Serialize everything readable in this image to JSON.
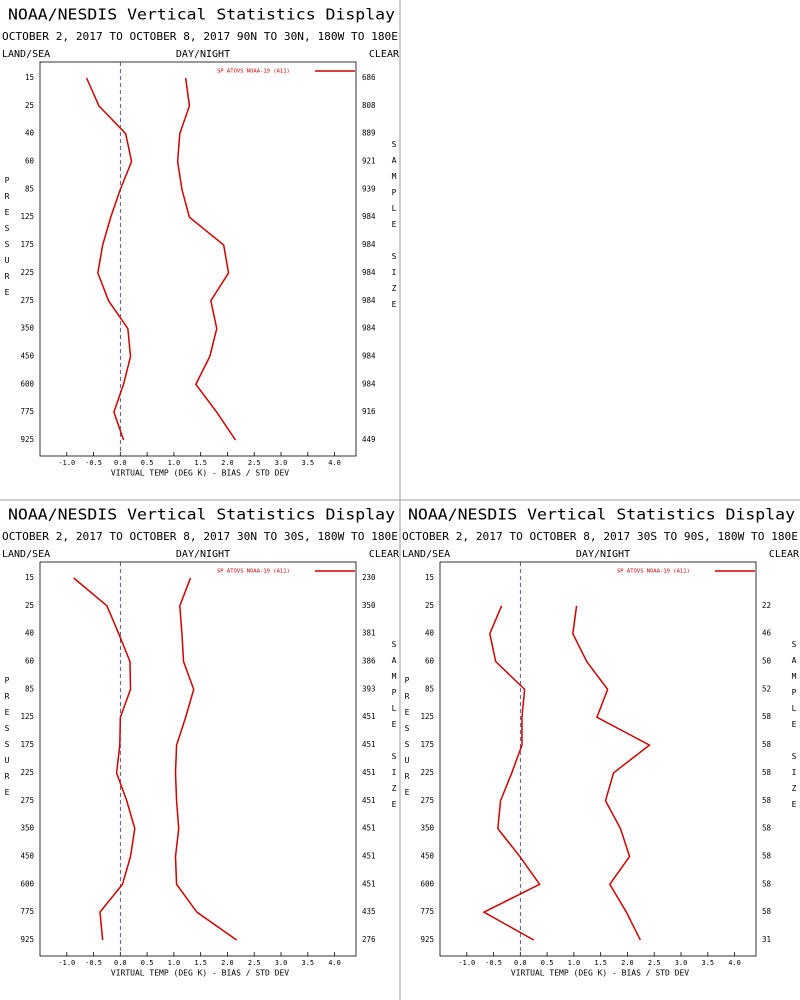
{
  "chart_data": [
    {
      "type": "profile",
      "title": "NOAA/NESDIS Vertical Statistics Display",
      "subtitle": "OCTOBER 2, 2017 TO OCTOBER 8, 2017 90N TO 30N, 180W TO 180E",
      "left_label": "LAND/SEA",
      "center_label": "DAY/NIGHT",
      "right_label": "CLEAR",
      "y_label": "PRESSURE",
      "y2_label": "SAMPLE SIZE",
      "x_label": "VIRTUAL TEMP (DEG K) - BIAS / STD DEV",
      "categories": [
        15,
        25,
        40,
        60,
        85,
        125,
        175,
        225,
        275,
        350,
        450,
        600,
        775,
        925
      ],
      "sample_size": [
        686,
        808,
        889,
        921,
        939,
        984,
        984,
        984,
        984,
        984,
        984,
        984,
        916,
        449
      ],
      "series": [
        {
          "name": "SP ATOVS NOAA-19 (A11)",
          "color": "#d00000",
          "values": [
            -0.63,
            -0.4,
            0.1,
            0.21,
            0.0,
            -0.18,
            -0.33,
            -0.42,
            -0.22,
            0.14,
            0.19,
            0.06,
            -0.12,
            0.06
          ],
          "std_dev": [
            1.22,
            1.29,
            1.11,
            1.07,
            1.15,
            1.29,
            1.93,
            2.02,
            1.69,
            1.8,
            1.67,
            1.41,
            1.8,
            2.15
          ]
        }
      ],
      "xlim": [
        -1.5,
        4.4
      ],
      "xticks": [
        {
          "value": -1,
          "label": "-1.0"
        },
        -0.5,
        {
          "value": 0,
          "label": "0.0"
        },
        0.5,
        {
          "value": 1,
          "label": "1.0"
        },
        1.5,
        {
          "value": 2,
          "label": "2.0"
        },
        2.5,
        {
          "value": 3,
          "label": "3.0"
        },
        3.5,
        {
          "value": 4,
          "label": "4.0"
        }
      ],
      "zero_line": true
    },
    {
      "type": "profile",
      "title": "NOAA/NESDIS Vertical Statistics Display",
      "subtitle": "OCTOBER 2, 2017 TO OCTOBER 8, 2017 30N TO 30S, 180W TO 180E",
      "left_label": "LAND/SEA",
      "center_label": "DAY/NIGHT",
      "right_label": "CLEAR",
      "y_label": "PRESSURE",
      "y2_label": "SAMPLE SIZE",
      "x_label": "VIRTUAL TEMP (DEG K) - BIAS / STD DEV",
      "categories": [
        15,
        25,
        40,
        60,
        85,
        125,
        175,
        225,
        275,
        350,
        450,
        600,
        775,
        925
      ],
      "sample_size": [
        230,
        350,
        381,
        386,
        393,
        451,
        451,
        451,
        451,
        451,
        451,
        451,
        435,
        276
      ],
      "series": [
        {
          "name": "SP ATOVS NOAA-19 (A11)",
          "color": "#d00000",
          "values": [
            -0.87,
            -0.25,
            -0.03,
            0.18,
            0.19,
            0.0,
            -0.01,
            -0.07,
            0.12,
            0.27,
            0.19,
            0.04,
            -0.38,
            -0.33
          ],
          "std_dev": [
            1.31,
            1.11,
            1.15,
            1.18,
            1.37,
            1.22,
            1.05,
            1.03,
            1.05,
            1.09,
            1.03,
            1.05,
            1.43,
            2.17
          ]
        }
      ],
      "xlim": [
        -1.5,
        4.4
      ],
      "xticks": [
        {
          "value": -1,
          "label": "-1.0"
        },
        -0.5,
        {
          "value": 0,
          "label": "0.0"
        },
        0.5,
        {
          "value": 1,
          "label": "1.0"
        },
        1.5,
        {
          "value": 2,
          "label": "2.0"
        },
        2.5,
        {
          "value": 3,
          "label": "3.0"
        },
        3.5,
        {
          "value": 4,
          "label": "4.0"
        }
      ],
      "zero_line": true
    },
    {
      "type": "profile",
      "title": "NOAA/NESDIS Vertical Statistics Display",
      "subtitle": "OCTOBER 2, 2017 TO OCTOBER 8, 2017 30S TO 90S, 180W TO 180E",
      "left_label": "LAND/SEA",
      "center_label": "DAY/NIGHT",
      "right_label": "CLEAR",
      "y_label": "PRESSURE",
      "y2_label": "SAMPLE SIZE",
      "x_label": "VIRTUAL TEMP (DEG K) - BIAS / STD DEV",
      "categories": [
        15,
        25,
        40,
        60,
        85,
        125,
        175,
        225,
        275,
        350,
        450,
        600,
        775,
        925
      ],
      "sample_size": [
        null,
        22,
        46,
        50,
        52,
        58,
        58,
        58,
        58,
        58,
        58,
        58,
        58,
        31
      ],
      "series": [
        {
          "name": "SP ATOVS NOAA-19 (A11)",
          "color": "#d00000",
          "values": [
            null,
            -0.35,
            -0.57,
            -0.46,
            0.08,
            0.03,
            0.03,
            -0.16,
            -0.37,
            -0.42,
            -0.01,
            0.36,
            -0.68,
            0.25
          ],
          "std_dev": [
            null,
            1.05,
            0.98,
            1.24,
            1.63,
            1.43,
            2.41,
            1.74,
            1.59,
            1.87,
            2.04,
            1.67,
            1.98,
            2.24
          ]
        }
      ],
      "xlim": [
        -1.5,
        4.4
      ],
      "xticks": [
        {
          "value": -1,
          "label": "-1.0"
        },
        -0.5,
        {
          "value": 0,
          "label": "0.0"
        },
        0.5,
        {
          "value": 1,
          "label": "1.0"
        },
        1.5,
        {
          "value": 2,
          "label": "2.0"
        },
        2.5,
        {
          "value": 3,
          "label": "3.0"
        },
        3.5,
        {
          "value": 4,
          "label": "4.0"
        }
      ],
      "zero_line": true
    }
  ]
}
